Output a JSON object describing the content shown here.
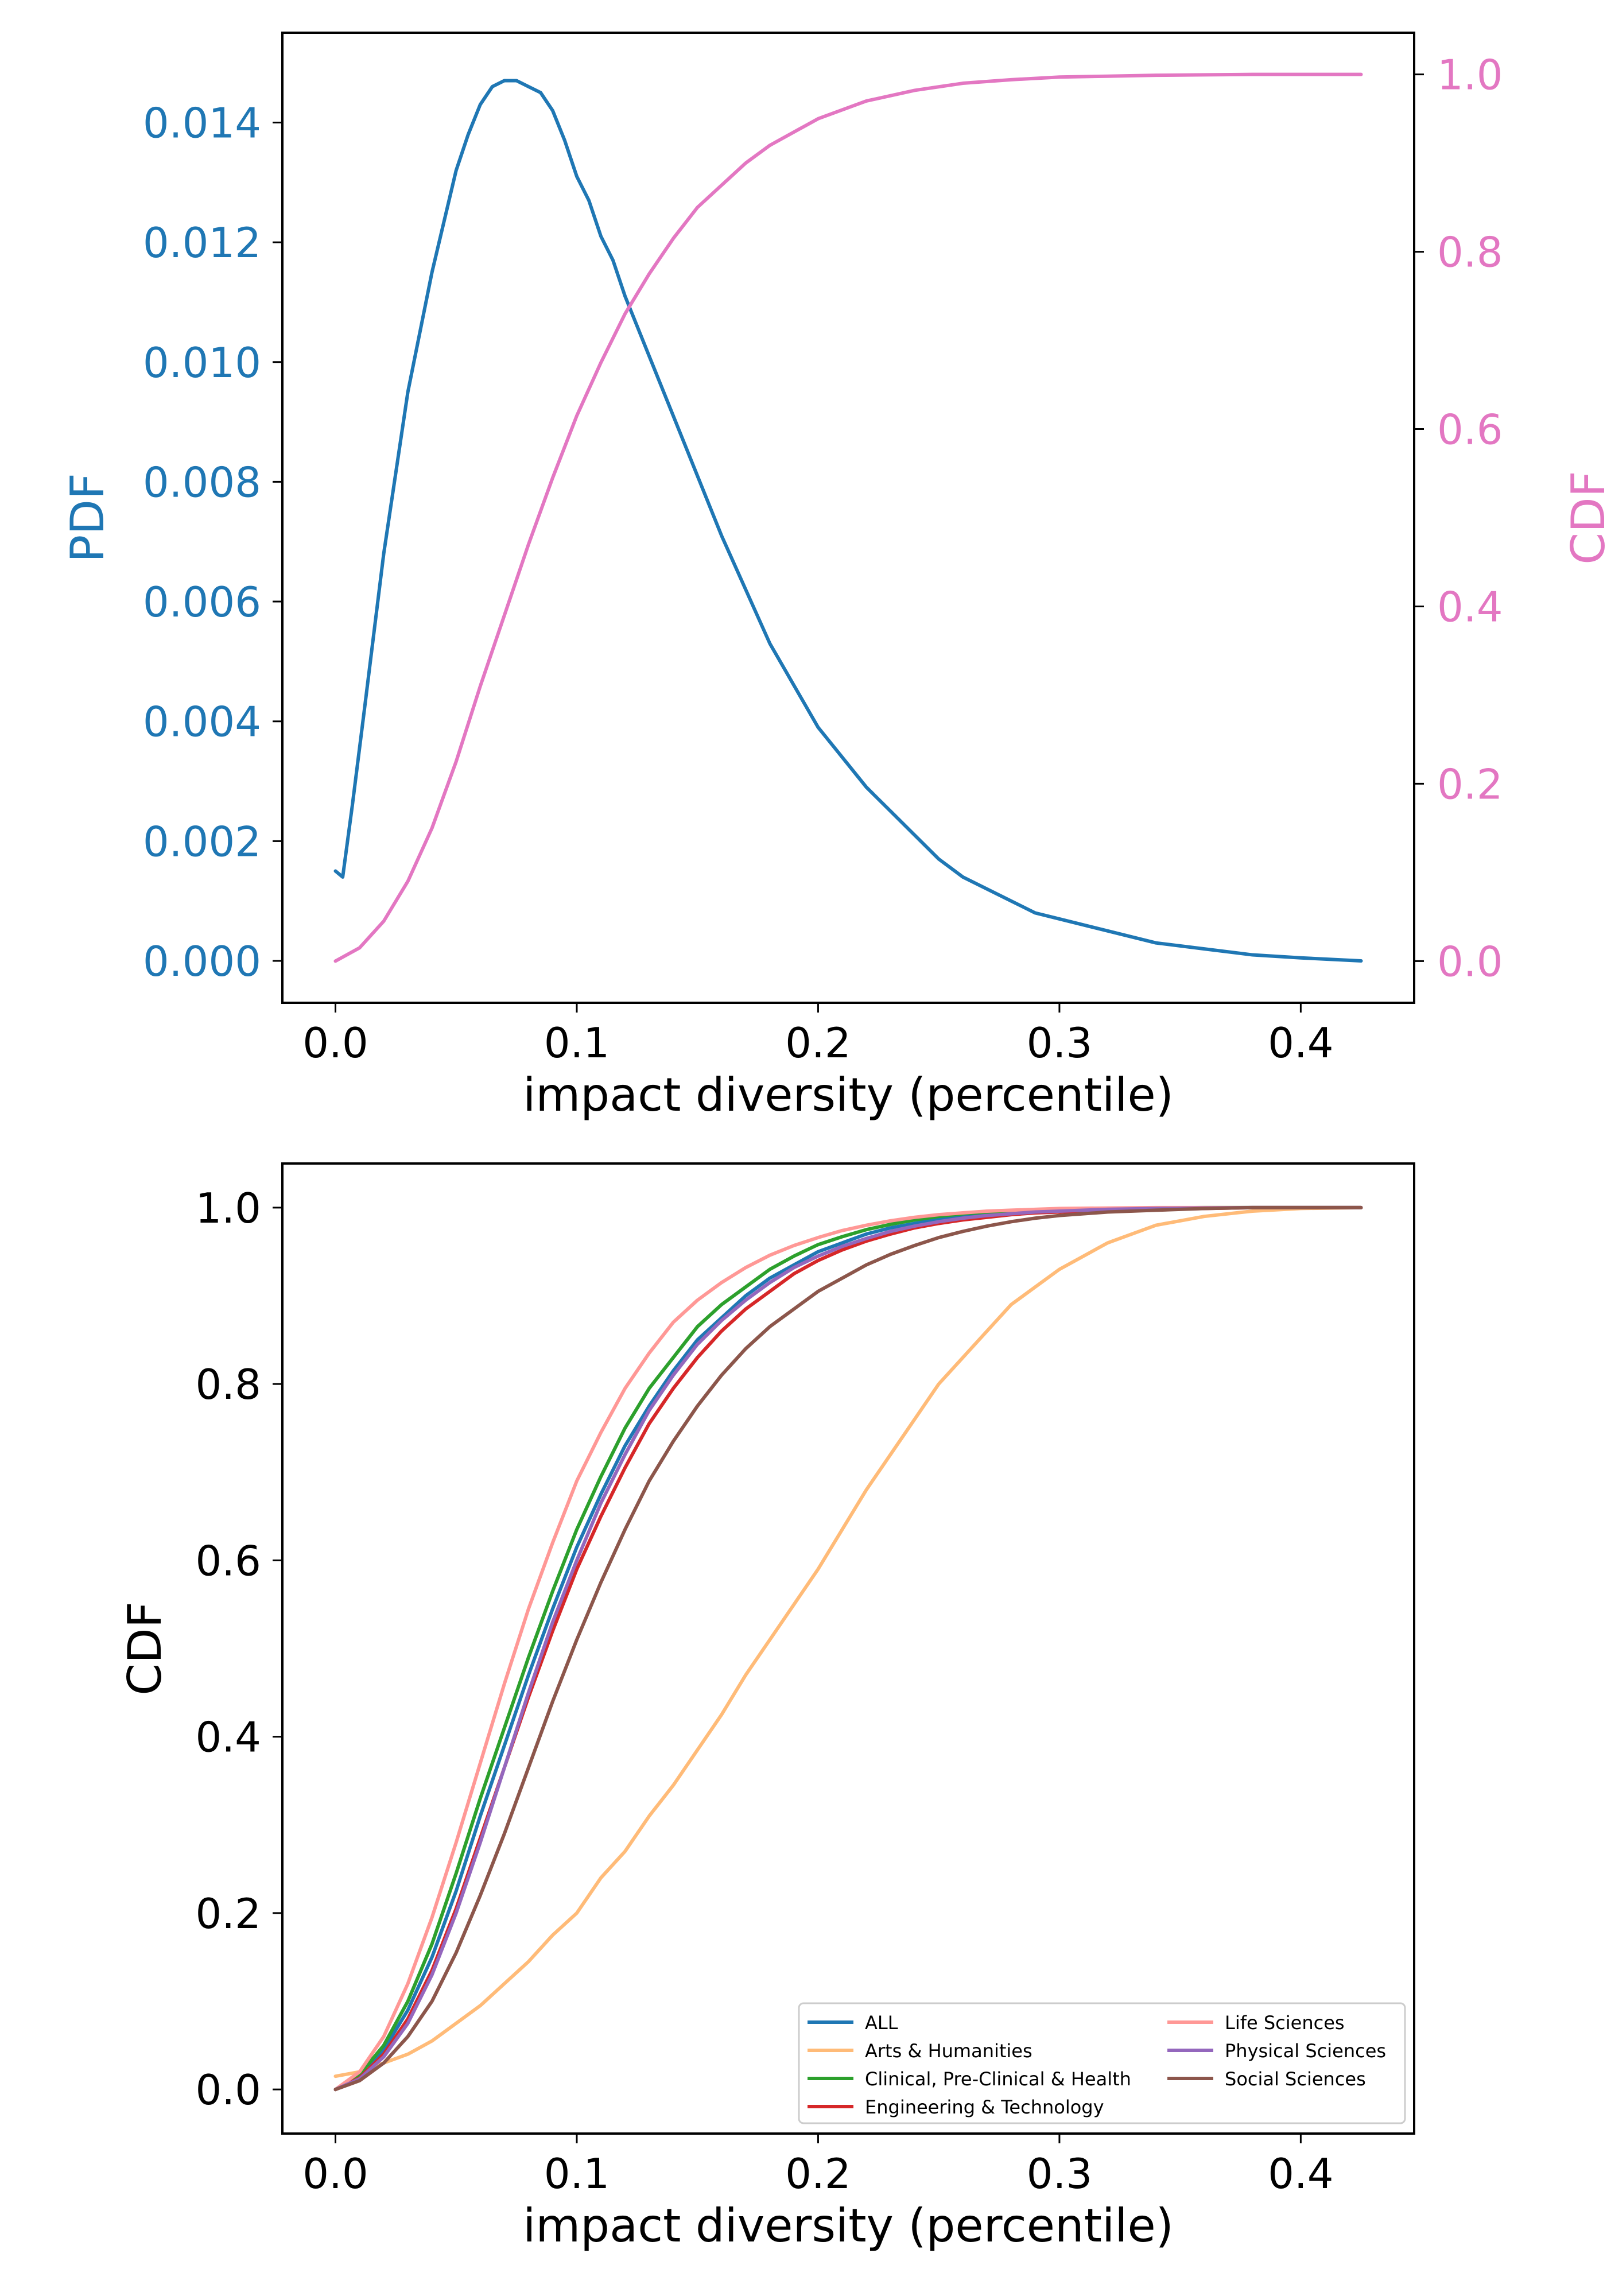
{
  "chart_data": [
    {
      "type": "line",
      "xlabel": "impact diversity (percentile)",
      "ylabel": "PDF",
      "ylabel_right": "CDF",
      "xlim": [
        -0.022,
        0.447
      ],
      "ylim": [
        -0.0007,
        0.0155
      ],
      "ylim_right": [
        -0.047,
        1.047
      ],
      "xticks": [
        0.0,
        0.1,
        0.2,
        0.3,
        0.4
      ],
      "xtick_labels": [
        "0.0",
        "0.1",
        "0.2",
        "0.3",
        "0.4"
      ],
      "yticks": [
        0.0,
        0.002,
        0.004,
        0.006,
        0.008,
        0.01,
        0.012,
        0.014
      ],
      "ytick_labels": [
        "0.000",
        "0.002",
        "0.004",
        "0.006",
        "0.008",
        "0.010",
        "0.012",
        "0.014"
      ],
      "yticks_right": [
        0.0,
        0.2,
        0.4,
        0.6,
        0.8,
        1.0
      ],
      "ytick_labels_right": [
        "0.0",
        "0.2",
        "0.4",
        "0.6",
        "0.8",
        "1.0"
      ],
      "grid": false,
      "colors": {
        "left_axis": "#1f77b4",
        "right_axis": "#e377c2"
      },
      "series": [
        {
          "axis": "left",
          "color": "#1f77b4",
          "x": [
            0.0,
            0.003,
            0.007,
            0.012,
            0.02,
            0.03,
            0.04,
            0.05,
            0.055,
            0.06,
            0.065,
            0.07,
            0.075,
            0.08,
            0.085,
            0.09,
            0.095,
            0.1,
            0.105,
            0.11,
            0.115,
            0.12,
            0.125,
            0.13,
            0.135,
            0.14,
            0.15,
            0.16,
            0.17,
            0.18,
            0.19,
            0.2,
            0.21,
            0.22,
            0.23,
            0.24,
            0.25,
            0.26,
            0.27,
            0.28,
            0.29,
            0.3,
            0.32,
            0.34,
            0.36,
            0.38,
            0.4,
            0.425
          ],
          "y": [
            0.0015,
            0.0014,
            0.0026,
            0.0042,
            0.0068,
            0.0095,
            0.0115,
            0.0132,
            0.0138,
            0.0143,
            0.0146,
            0.0147,
            0.0147,
            0.0146,
            0.0145,
            0.0142,
            0.0137,
            0.0131,
            0.0127,
            0.0121,
            0.0117,
            0.0111,
            0.0106,
            0.0101,
            0.0096,
            0.0091,
            0.0081,
            0.0071,
            0.0062,
            0.0053,
            0.0046,
            0.0039,
            0.0034,
            0.0029,
            0.0025,
            0.0021,
            0.0017,
            0.0014,
            0.0012,
            0.001,
            0.0008,
            0.0007,
            0.0005,
            0.0003,
            0.0002,
            0.0001,
            5e-05,
            0.0
          ]
        },
        {
          "axis": "right",
          "color": "#e377c2",
          "x": [
            0.0,
            0.01,
            0.02,
            0.03,
            0.04,
            0.05,
            0.06,
            0.07,
            0.08,
            0.09,
            0.1,
            0.11,
            0.12,
            0.13,
            0.14,
            0.15,
            0.16,
            0.17,
            0.18,
            0.19,
            0.2,
            0.22,
            0.24,
            0.26,
            0.28,
            0.3,
            0.32,
            0.34,
            0.36,
            0.38,
            0.4,
            0.425
          ],
          "y": [
            0.0,
            0.015,
            0.045,
            0.09,
            0.15,
            0.225,
            0.31,
            0.39,
            0.47,
            0.545,
            0.615,
            0.675,
            0.73,
            0.775,
            0.815,
            0.85,
            0.875,
            0.9,
            0.92,
            0.935,
            0.95,
            0.97,
            0.982,
            0.99,
            0.994,
            0.997,
            0.998,
            0.999,
            0.9995,
            1.0,
            1.0,
            1.0
          ]
        }
      ]
    },
    {
      "type": "line",
      "xlabel": "impact diversity (percentile)",
      "ylabel": "CDF",
      "xlim": [
        -0.022,
        0.447
      ],
      "ylim": [
        -0.05,
        1.05
      ],
      "xticks": [
        0.0,
        0.1,
        0.2,
        0.3,
        0.4
      ],
      "xtick_labels": [
        "0.0",
        "0.1",
        "0.2",
        "0.3",
        "0.4"
      ],
      "yticks": [
        0.0,
        0.2,
        0.4,
        0.6,
        0.8,
        1.0
      ],
      "ytick_labels": [
        "0.0",
        "0.2",
        "0.4",
        "0.6",
        "0.8",
        "1.0"
      ],
      "grid": false,
      "legend": {
        "position": "lower-right",
        "columns": 2
      },
      "x": [
        0.0,
        0.01,
        0.02,
        0.03,
        0.04,
        0.05,
        0.06,
        0.07,
        0.08,
        0.09,
        0.1,
        0.11,
        0.12,
        0.13,
        0.14,
        0.15,
        0.16,
        0.17,
        0.18,
        0.19,
        0.2,
        0.21,
        0.22,
        0.23,
        0.24,
        0.25,
        0.26,
        0.27,
        0.28,
        0.29,
        0.3,
        0.32,
        0.34,
        0.36,
        0.38,
        0.4,
        0.425
      ],
      "series": [
        {
          "name": "ALL",
          "color": "#1f77b4",
          "values": [
            0.0,
            0.015,
            0.045,
            0.09,
            0.15,
            0.225,
            0.31,
            0.39,
            0.47,
            0.545,
            0.615,
            0.675,
            0.73,
            0.775,
            0.815,
            0.85,
            0.875,
            0.9,
            0.92,
            0.935,
            0.95,
            0.96,
            0.97,
            0.977,
            0.982,
            0.987,
            0.99,
            0.992,
            0.994,
            0.996,
            0.997,
            0.998,
            0.999,
            0.9995,
            1.0,
            1.0,
            1.0
          ]
        },
        {
          "name": "Arts & Humanities",
          "color": "#ffbb78",
          "values": [
            0.015,
            0.02,
            0.03,
            0.04,
            0.055,
            0.075,
            0.095,
            0.12,
            0.145,
            0.175,
            0.2,
            0.24,
            0.27,
            0.31,
            0.345,
            0.385,
            0.425,
            0.47,
            0.51,
            0.55,
            0.59,
            0.635,
            0.68,
            0.72,
            0.76,
            0.8,
            0.83,
            0.86,
            0.89,
            0.91,
            0.93,
            0.96,
            0.98,
            0.99,
            0.996,
            0.999,
            1.0
          ]
        },
        {
          "name": "Clinical, Pre-Clinical & Health",
          "color": "#2ca02c",
          "values": [
            0.0,
            0.017,
            0.05,
            0.1,
            0.165,
            0.245,
            0.33,
            0.41,
            0.49,
            0.565,
            0.635,
            0.695,
            0.75,
            0.795,
            0.83,
            0.865,
            0.89,
            0.91,
            0.93,
            0.945,
            0.958,
            0.967,
            0.975,
            0.981,
            0.986,
            0.99,
            0.993,
            0.995,
            0.996,
            0.997,
            0.998,
            0.999,
            0.9995,
            1.0,
            1.0,
            1.0,
            1.0
          ]
        },
        {
          "name": "Engineering & Technology",
          "color": "#d62728",
          "values": [
            0.0,
            0.013,
            0.04,
            0.08,
            0.135,
            0.205,
            0.285,
            0.365,
            0.445,
            0.52,
            0.59,
            0.65,
            0.705,
            0.755,
            0.795,
            0.83,
            0.86,
            0.885,
            0.905,
            0.925,
            0.94,
            0.952,
            0.962,
            0.97,
            0.977,
            0.982,
            0.986,
            0.989,
            0.992,
            0.994,
            0.995,
            0.997,
            0.998,
            0.999,
            1.0,
            1.0,
            1.0
          ]
        },
        {
          "name": "Life Sciences",
          "color": "#ff9896",
          "values": [
            0.0,
            0.02,
            0.06,
            0.12,
            0.195,
            0.28,
            0.37,
            0.46,
            0.545,
            0.62,
            0.69,
            0.745,
            0.795,
            0.835,
            0.87,
            0.895,
            0.915,
            0.932,
            0.946,
            0.957,
            0.966,
            0.974,
            0.98,
            0.985,
            0.989,
            0.992,
            0.994,
            0.996,
            0.997,
            0.998,
            0.999,
            0.9995,
            1.0,
            1.0,
            1.0,
            1.0,
            1.0
          ]
        },
        {
          "name": "Physical Sciences",
          "color": "#9467bd",
          "values": [
            0.0,
            0.012,
            0.037,
            0.075,
            0.13,
            0.2,
            0.28,
            0.365,
            0.45,
            0.53,
            0.6,
            0.665,
            0.72,
            0.77,
            0.81,
            0.845,
            0.872,
            0.895,
            0.915,
            0.932,
            0.945,
            0.956,
            0.965,
            0.973,
            0.979,
            0.984,
            0.988,
            0.991,
            0.993,
            0.995,
            0.996,
            0.998,
            0.999,
            0.9995,
            1.0,
            1.0,
            1.0
          ]
        },
        {
          "name": "Social Sciences",
          "color": "#8c564b",
          "values": [
            0.0,
            0.01,
            0.03,
            0.06,
            0.1,
            0.155,
            0.22,
            0.29,
            0.365,
            0.44,
            0.51,
            0.575,
            0.635,
            0.69,
            0.735,
            0.775,
            0.81,
            0.84,
            0.865,
            0.885,
            0.905,
            0.92,
            0.935,
            0.947,
            0.957,
            0.966,
            0.973,
            0.979,
            0.984,
            0.988,
            0.991,
            0.995,
            0.997,
            0.999,
            1.0,
            1.0,
            1.0
          ]
        }
      ]
    }
  ]
}
